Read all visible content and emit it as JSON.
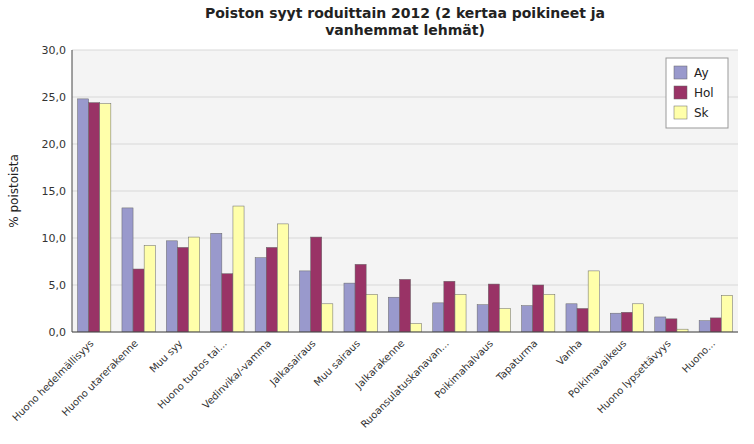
{
  "chart_data": {
    "type": "bar",
    "title": "Poiston syyt roduittain 2012 (2 kertaa poikineet ja\nvanhemmat lehmät)",
    "ylabel": "% poistoista",
    "categories": [
      "Huono hedelmällisyys",
      "Huono utarerakenne",
      "Muu syy",
      "Huono tuotos tai...",
      "Vedinvika/-vamma",
      "Jalkasairaus",
      "Muu sairaus",
      "Jalkarakenne",
      "Ruoansulatuskanavan...",
      "Poikimahalvaus",
      "Tapaturma",
      "Vanha",
      "Poikimavaikeus",
      "Huono lypsettävyys",
      "Huono..."
    ],
    "series": [
      {
        "name": "Ay",
        "color": "#9999cc",
        "values": [
          24.8,
          13.2,
          9.7,
          10.5,
          7.9,
          6.5,
          5.2,
          3.7,
          3.1,
          2.9,
          2.8,
          3.0,
          2.0,
          1.6,
          1.2
        ]
      },
      {
        "name": "Hol",
        "color": "#993366",
        "values": [
          24.4,
          6.7,
          9.0,
          6.2,
          9.0,
          10.1,
          7.2,
          5.6,
          5.4,
          5.1,
          5.0,
          2.5,
          2.1,
          1.4,
          1.5
        ]
      },
      {
        "name": "Sk",
        "color": "#ffffaa",
        "values": [
          24.3,
          9.2,
          10.1,
          13.4,
          11.5,
          3.0,
          4.0,
          0.9,
          4.0,
          2.5,
          4.0,
          6.5,
          3.0,
          0.3,
          3.9
        ]
      }
    ],
    "ylim": [
      0,
      30
    ],
    "yticks": [
      {
        "value": 0,
        "label": "0,0"
      },
      {
        "value": 5,
        "label": "5,0"
      },
      {
        "value": 10,
        "label": "10,0"
      },
      {
        "value": 15,
        "label": "15,0"
      },
      {
        "value": 20,
        "label": "20,0"
      },
      {
        "value": 25,
        "label": "25,0"
      },
      {
        "value": 30,
        "label": "30,0"
      }
    ],
    "grid": true,
    "legend": "upper right"
  }
}
